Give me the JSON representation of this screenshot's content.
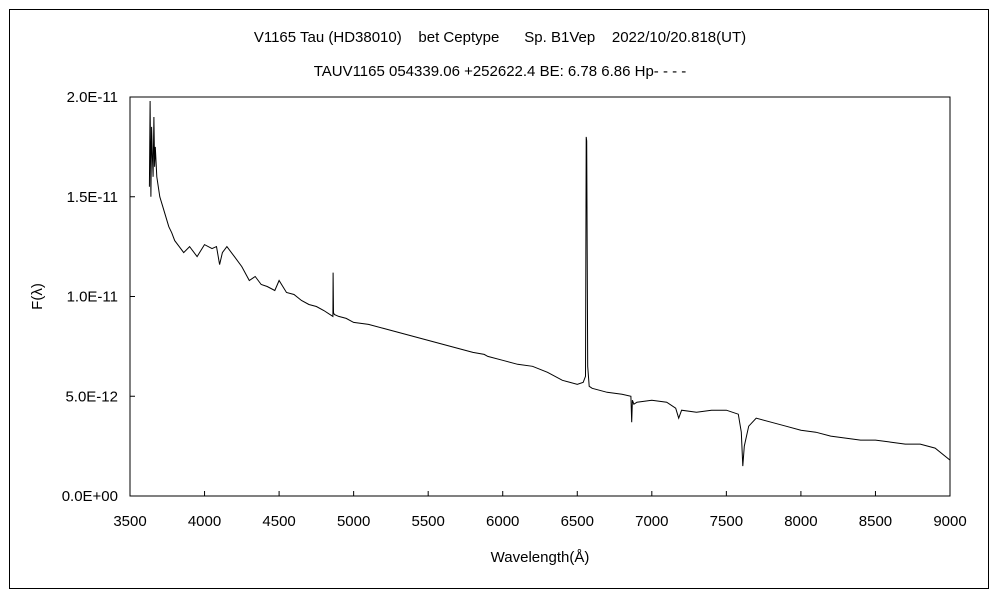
{
  "chart_data": {
    "type": "line",
    "title": "V1165 Tau (HD38010)    bet Ceptype      Sp. B1Vep    2022/10/20.818(UT)",
    "subtitle": "TAUV1165 054339.06 +252622.4 BE: 6.78 6.86 Hp- - - -",
    "xlabel": "Wavelength(Å)",
    "ylabel": "F(λ)",
    "xlim": [
      3500,
      9000
    ],
    "ylim": [
      0,
      2e-11
    ],
    "x_ticks": [
      3500,
      4000,
      4500,
      5000,
      5500,
      6000,
      6500,
      7000,
      7500,
      8000,
      8500,
      9000
    ],
    "x_tick_labels": [
      "3500",
      "4000",
      "4500",
      "5000",
      "5500",
      "6000",
      "6500",
      "7000",
      "7500",
      "8000",
      "8500",
      "9000"
    ],
    "y_ticks": [
      0,
      5e-12,
      1e-11,
      1.5e-11,
      2e-11
    ],
    "y_tick_labels": [
      "0.0E+00",
      "5.0E-12",
      "1.0E-11",
      "1.5E-11",
      "2.0E-11"
    ],
    "grid": false,
    "line_color": "#000000",
    "series": [
      {
        "x": [
          3630,
          3635,
          3640,
          3645,
          3650,
          3655,
          3660,
          3665,
          3670,
          3680,
          3690,
          3700,
          3720,
          3740,
          3760,
          3780,
          3800,
          3830,
          3860,
          3900,
          3950,
          4000,
          4050,
          4080,
          4101,
          4120,
          4150,
          4200,
          4250,
          4300,
          4340,
          4380,
          4420,
          4471,
          4500,
          4550,
          4600,
          4650,
          4700,
          4750,
          4800,
          4861,
          4862,
          4865,
          4870,
          4900,
          4950,
          5000,
          5100,
          5200,
          5300,
          5400,
          5500,
          5600,
          5700,
          5800,
          5876,
          5900,
          6000,
          6100,
          6200,
          6300,
          6400,
          6500,
          6540,
          6555,
          6560,
          6563,
          6570,
          6580,
          6600,
          6700,
          6800,
          6860,
          6865,
          6870,
          6880,
          6900,
          7000,
          7100,
          7160,
          7180,
          7200,
          7300,
          7400,
          7500,
          7580,
          7600,
          7610,
          7620,
          7650,
          7700,
          7800,
          7900,
          8000,
          8100,
          8200,
          8300,
          8400,
          8500,
          8600,
          8700,
          8800,
          8900,
          9000
        ],
        "y": [
          1.55e-11,
          1.98e-11,
          1.5e-11,
          1.85e-11,
          1.7e-11,
          1.6e-11,
          1.9e-11,
          1.65e-11,
          1.75e-11,
          1.6e-11,
          1.55e-11,
          1.5e-11,
          1.45e-11,
          1.4e-11,
          1.35e-11,
          1.32e-11,
          1.28e-11,
          1.25e-11,
          1.22e-11,
          1.25e-11,
          1.2e-11,
          1.26e-11,
          1.24e-11,
          1.25e-11,
          1.16e-11,
          1.22e-11,
          1.25e-11,
          1.2e-11,
          1.15e-11,
          1.08e-11,
          1.1e-11,
          1.06e-11,
          1.05e-11,
          1.03e-11,
          1.08e-11,
          1.02e-11,
          1.01e-11,
          9.8e-12,
          9.6e-12,
          9.5e-12,
          9.3e-12,
          9e-12,
          1.12e-11,
          9.2e-12,
          9.1e-12,
          9e-12,
          8.9e-12,
          8.7e-12,
          8.6e-12,
          8.4e-12,
          8.2e-12,
          8e-12,
          7.8e-12,
          7.6e-12,
          7.4e-12,
          7.2e-12,
          7.1e-12,
          7e-12,
          6.8e-12,
          6.6e-12,
          6.5e-12,
          6.2e-12,
          5.8e-12,
          5.6e-12,
          5.7e-12,
          6e-12,
          1.8e-11,
          1.78e-11,
          6.5e-12,
          5.5e-12,
          5.4e-12,
          5.2e-12,
          5.1e-12,
          5e-12,
          3.7e-12,
          4.8e-12,
          4.6e-12,
          4.7e-12,
          4.8e-12,
          4.7e-12,
          4.4e-12,
          3.9e-12,
          4.3e-12,
          4.2e-12,
          4.3e-12,
          4.3e-12,
          4.1e-12,
          3.2e-12,
          1.5e-12,
          2.5e-12,
          3.5e-12,
          3.9e-12,
          3.7e-12,
          3.5e-12,
          3.3e-12,
          3.2e-12,
          3e-12,
          2.9e-12,
          2.8e-12,
          2.8e-12,
          2.7e-12,
          2.6e-12,
          2.6e-12,
          2.4e-12,
          1.8e-12
        ]
      }
    ]
  }
}
